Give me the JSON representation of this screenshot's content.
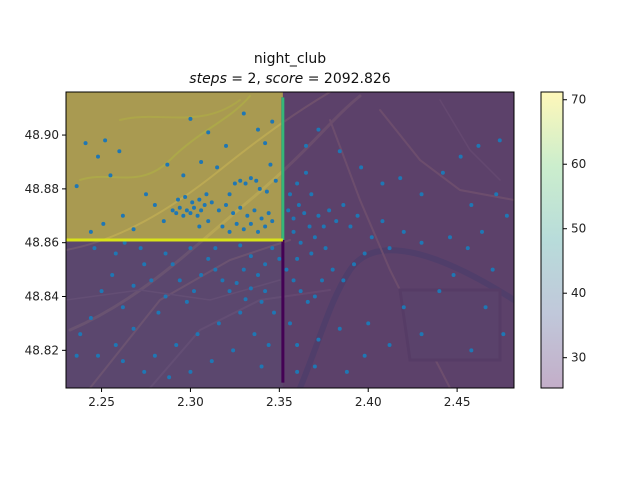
{
  "chart_data": {
    "type": "heatmap",
    "title_line1": "night_club",
    "title_line2_parts": {
      "steps_label": "steps",
      "steps_value": "2",
      "score_label": "score",
      "score_value": "2092.826"
    },
    "xlabel": "",
    "ylabel": "",
    "xlim": [
      2.23,
      2.482
    ],
    "ylim": [
      48.806,
      48.916
    ],
    "x_ticks": [
      2.25,
      2.3,
      2.35,
      2.4,
      2.45
    ],
    "x_tick_labels": [
      "2.25",
      "2.30",
      "2.35",
      "2.40",
      "2.45"
    ],
    "y_ticks": [
      48.82,
      48.84,
      48.86,
      48.88,
      48.9
    ],
    "y_tick_labels": [
      "48.82",
      "48.84",
      "48.86",
      "48.88",
      "48.90"
    ],
    "colorbar": {
      "range": [
        25.3,
        71.2
      ],
      "ticks": [
        30,
        40,
        50,
        60,
        70
      ],
      "tick_labels": [
        "30",
        "40",
        "50",
        "60",
        "70"
      ],
      "colormap": "viridis"
    },
    "regions": [
      {
        "name": "north-west",
        "x": [
          2.23,
          2.352
        ],
        "y": [
          48.861,
          48.916
        ],
        "value": 71
      },
      {
        "name": "south-west",
        "x": [
          2.23,
          2.352
        ],
        "y": [
          48.806,
          48.861
        ],
        "value": 30
      },
      {
        "name": "east",
        "x": [
          2.352,
          2.482
        ],
        "y": [
          48.806,
          48.916
        ],
        "value": 28
      }
    ],
    "splits": [
      {
        "orientation": "vertical",
        "x": 2.352,
        "y": [
          48.808,
          48.914
        ],
        "color": "#440154"
      },
      {
        "orientation": "vertical",
        "x": 2.352,
        "y": [
          48.861,
          48.914
        ],
        "color": "#35b779"
      },
      {
        "orientation": "horizontal",
        "y": 48.861,
        "x": [
          2.23,
          2.352
        ],
        "color": "#d8e219"
      }
    ],
    "points": [
      [
        2.29,
        48.872
      ],
      [
        2.292,
        48.871
      ],
      [
        2.294,
        48.873
      ],
      [
        2.296,
        48.87
      ],
      [
        2.298,
        48.872
      ],
      [
        2.3,
        48.871
      ],
      [
        2.302,
        48.873
      ],
      [
        2.304,
        48.87
      ],
      [
        2.306,
        48.872
      ],
      [
        2.308,
        48.874
      ],
      [
        2.293,
        48.876
      ],
      [
        2.297,
        48.877
      ],
      [
        2.301,
        48.875
      ],
      [
        2.305,
        48.876
      ],
      [
        2.309,
        48.878
      ],
      [
        2.312,
        48.875
      ],
      [
        2.316,
        48.872
      ],
      [
        2.32,
        48.874
      ],
      [
        2.324,
        48.871
      ],
      [
        2.328,
        48.873
      ],
      [
        2.332,
        48.87
      ],
      [
        2.336,
        48.872
      ],
      [
        2.34,
        48.869
      ],
      [
        2.344,
        48.871
      ],
      [
        2.325,
        48.882
      ],
      [
        2.328,
        48.883
      ],
      [
        2.331,
        48.882
      ],
      [
        2.334,
        48.884
      ],
      [
        2.337,
        48.883
      ],
      [
        2.322,
        48.878
      ],
      [
        2.339,
        48.88
      ],
      [
        2.343,
        48.879
      ],
      [
        2.318,
        48.866
      ],
      [
        2.322,
        48.864
      ],
      [
        2.326,
        48.867
      ],
      [
        2.33,
        48.865
      ],
      [
        2.334,
        48.867
      ],
      [
        2.338,
        48.864
      ],
      [
        2.342,
        48.866
      ],
      [
        2.346,
        48.868
      ],
      [
        2.305,
        48.866
      ],
      [
        2.31,
        48.868
      ],
      [
        2.285,
        48.868
      ],
      [
        2.28,
        48.874
      ],
      [
        2.275,
        48.878
      ],
      [
        2.268,
        48.865
      ],
      [
        2.262,
        48.87
      ],
      [
        2.255,
        48.885
      ],
      [
        2.248,
        48.892
      ],
      [
        2.252,
        48.898
      ],
      [
        2.26,
        48.894
      ],
      [
        2.3,
        48.906
      ],
      [
        2.31,
        48.901
      ],
      [
        2.32,
        48.896
      ],
      [
        2.33,
        48.908
      ],
      [
        2.338,
        48.902
      ],
      [
        2.342,
        48.897
      ],
      [
        2.346,
        48.905
      ],
      [
        2.345,
        48.889
      ],
      [
        2.348,
        48.883
      ],
      [
        2.315,
        48.888
      ],
      [
        2.306,
        48.89
      ],
      [
        2.296,
        48.885
      ],
      [
        2.287,
        48.889
      ],
      [
        2.244,
        48.864
      ],
      [
        2.251,
        48.867
      ],
      [
        2.263,
        48.86
      ],
      [
        2.236,
        48.881
      ],
      [
        2.241,
        48.897
      ],
      [
        2.355,
        48.872
      ],
      [
        2.358,
        48.869
      ],
      [
        2.361,
        48.874
      ],
      [
        2.364,
        48.871
      ],
      [
        2.367,
        48.866
      ],
      [
        2.37,
        48.862
      ],
      [
        2.362,
        48.86
      ],
      [
        2.358,
        48.864
      ],
      [
        2.356,
        48.878
      ],
      [
        2.36,
        48.882
      ],
      [
        2.365,
        48.886
      ],
      [
        2.368,
        48.878
      ],
      [
        2.372,
        48.87
      ],
      [
        2.375,
        48.866
      ],
      [
        2.378,
        48.872
      ],
      [
        2.382,
        48.868
      ],
      [
        2.386,
        48.874
      ],
      [
        2.39,
        48.866
      ],
      [
        2.394,
        48.87
      ],
      [
        2.376,
        48.858
      ],
      [
        2.368,
        48.856
      ],
      [
        2.36,
        48.854
      ],
      [
        2.354,
        48.85
      ],
      [
        2.358,
        48.846
      ],
      [
        2.362,
        48.842
      ],
      [
        2.366,
        48.838
      ],
      [
        2.37,
        48.84
      ],
      [
        2.374,
        48.846
      ],
      [
        2.38,
        48.85
      ],
      [
        2.386,
        48.846
      ],
      [
        2.392,
        48.852
      ],
      [
        2.398,
        48.856
      ],
      [
        2.402,
        48.862
      ],
      [
        2.408,
        48.868
      ],
      [
        2.412,
        48.858
      ],
      [
        2.42,
        48.864
      ],
      [
        2.43,
        48.86
      ],
      [
        2.446,
        48.862
      ],
      [
        2.456,
        48.858
      ],
      [
        2.464,
        48.864
      ],
      [
        2.47,
        48.85
      ],
      [
        2.44,
        48.842
      ],
      [
        2.42,
        48.836
      ],
      [
        2.4,
        48.83
      ],
      [
        2.384,
        48.828
      ],
      [
        2.372,
        48.824
      ],
      [
        2.36,
        48.822
      ],
      [
        2.356,
        48.83
      ],
      [
        2.365,
        48.896
      ],
      [
        2.372,
        48.902
      ],
      [
        2.384,
        48.894
      ],
      [
        2.396,
        48.888
      ],
      [
        2.408,
        48.882
      ],
      [
        2.418,
        48.884
      ],
      [
        2.43,
        48.878
      ],
      [
        2.442,
        48.886
      ],
      [
        2.452,
        48.892
      ],
      [
        2.462,
        48.896
      ],
      [
        2.474,
        48.898
      ],
      [
        2.472,
        48.878
      ],
      [
        2.478,
        48.87
      ],
      [
        2.458,
        48.874
      ],
      [
        2.448,
        48.848
      ],
      [
        2.466,
        48.836
      ],
      [
        2.476,
        48.826
      ],
      [
        2.458,
        48.82
      ],
      [
        2.43,
        48.826
      ],
      [
        2.412,
        48.822
      ],
      [
        2.398,
        48.818
      ],
      [
        2.388,
        48.812
      ],
      [
        2.37,
        48.814
      ],
      [
        2.36,
        48.812
      ],
      [
        2.35,
        48.854
      ],
      [
        2.346,
        48.858
      ],
      [
        2.342,
        48.852
      ],
      [
        2.338,
        48.848
      ],
      [
        2.334,
        48.855
      ],
      [
        2.33,
        48.85
      ],
      [
        2.326,
        48.845
      ],
      [
        2.322,
        48.842
      ],
      [
        2.318,
        48.846
      ],
      [
        2.314,
        48.85
      ],
      [
        2.31,
        48.854
      ],
      [
        2.306,
        48.848
      ],
      [
        2.302,
        48.842
      ],
      [
        2.298,
        48.838
      ],
      [
        2.294,
        48.846
      ],
      [
        2.29,
        48.852
      ],
      [
        2.286,
        48.84
      ],
      [
        2.282,
        48.834
      ],
      [
        2.278,
        48.846
      ],
      [
        2.274,
        48.852
      ],
      [
        2.268,
        48.844
      ],
      [
        2.262,
        48.836
      ],
      [
        2.256,
        48.848
      ],
      [
        2.25,
        48.842
      ],
      [
        2.244,
        48.832
      ],
      [
        2.238,
        48.826
      ],
      [
        2.248,
        48.818
      ],
      [
        2.258,
        48.822
      ],
      [
        2.268,
        48.828
      ],
      [
        2.28,
        48.818
      ],
      [
        2.292,
        48.822
      ],
      [
        2.304,
        48.826
      ],
      [
        2.316,
        48.83
      ],
      [
        2.328,
        48.834
      ],
      [
        2.34,
        48.838
      ],
      [
        2.336,
        48.826
      ],
      [
        2.324,
        48.82
      ],
      [
        2.312,
        48.816
      ],
      [
        2.3,
        48.812
      ],
      [
        2.288,
        48.81
      ],
      [
        2.274,
        48.812
      ],
      [
        2.262,
        48.816
      ],
      [
        2.236,
        48.818
      ],
      [
        2.246,
        48.858
      ],
      [
        2.258,
        48.856
      ],
      [
        2.272,
        48.858
      ],
      [
        2.286,
        48.856
      ],
      [
        2.3,
        48.858
      ],
      [
        2.314,
        48.858
      ],
      [
        2.328,
        48.859
      ],
      [
        2.342,
        48.842
      ],
      [
        2.347,
        48.834
      ],
      [
        2.344,
        48.822
      ],
      [
        2.34,
        48.814
      ],
      [
        2.334,
        48.843
      ],
      [
        2.331,
        48.839
      ]
    ]
  }
}
